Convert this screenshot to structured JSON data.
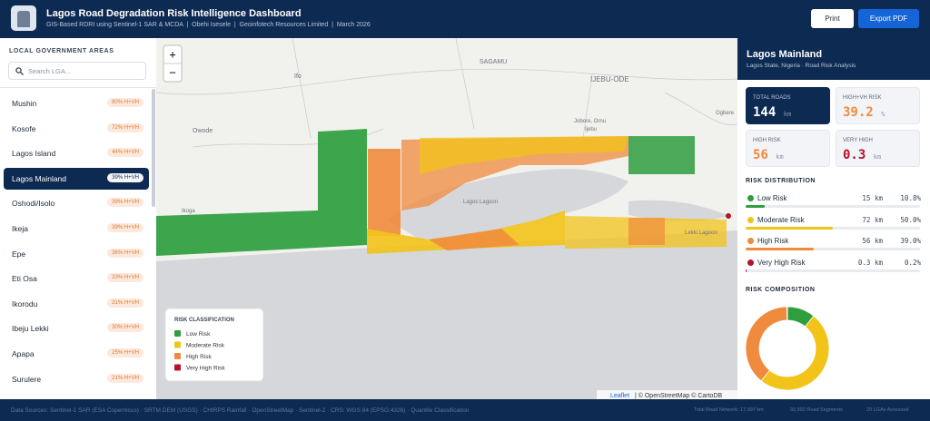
{
  "header": {
    "title": "Lagos Road Degradation Risk Intelligence Dashboard",
    "subtitle": "GIS-Based RDRI using Sentinel-1 SAR & MCDA  |  Obehi Isesele  |  Geoinfotech Resources Limited  |  March 2026",
    "buttons": [
      "Print",
      "Export PDF"
    ]
  },
  "sidebar": {
    "title": "LOCAL GOVERNMENT AREAS",
    "search_placeholder": "Search LGA...",
    "active_index": 3,
    "items": [
      {
        "name": "Mushin",
        "badge": "80% H+VH"
      },
      {
        "name": "Kosofe",
        "badge": "72% H+VH"
      },
      {
        "name": "Lagos Island",
        "badge": "44% H+VH"
      },
      {
        "name": "Lagos Mainland",
        "badge": "39% H+VH"
      },
      {
        "name": "Oshodi/Isolo",
        "badge": "39% H+VH"
      },
      {
        "name": "Ikeja",
        "badge": "39% H+VH"
      },
      {
        "name": "Epe",
        "badge": "36% H+VH"
      },
      {
        "name": "Eti Osa",
        "badge": "33% H+VH"
      },
      {
        "name": "Ikorodu",
        "badge": "31% H+VH"
      },
      {
        "name": "Ibeju Lekki",
        "badge": "30% H+VH"
      },
      {
        "name": "Apapa",
        "badge": "25% H+VH"
      },
      {
        "name": "Surulere",
        "badge": "21% H+VH"
      }
    ]
  },
  "map": {
    "zoom": [
      "+",
      "−"
    ],
    "place_labels": [
      "SAGAMU",
      "Ifo",
      "IJEBU-ODE",
      "Owode",
      "Ikoga",
      "Ogbere",
      "Jobore, Ornu",
      "Ijebu",
      "Lagos Lagoon",
      "Lekki Lagoon"
    ],
    "legend": {
      "title": "RISK CLASSIFICATION",
      "items": [
        {
          "label": "Low Risk",
          "color": "#2e9e3e"
        },
        {
          "label": "Moderate Risk",
          "color": "#f2c318"
        },
        {
          "label": "High Risk",
          "color": "#f08a3c"
        },
        {
          "label": "Very High Risk",
          "color": "#b5122b"
        }
      ]
    },
    "attribution": {
      "link": "Leaflet",
      "text": "| © OpenStreetMap © CartoDB"
    }
  },
  "panel": {
    "title": "Lagos Mainland",
    "subtitle": "Lagos State, Nigeria · Road Risk Analysis",
    "stats": [
      {
        "label": "TOTAL ROADS",
        "value": "144",
        "unit": "km",
        "color": "#ffffff"
      },
      {
        "label": "HIGH+VH RISK",
        "value": "39.2",
        "unit": "%",
        "color": "#f08a3c"
      },
      {
        "label": "HIGH RISK",
        "value": "56",
        "unit": "km",
        "color": "#f08a3c"
      },
      {
        "label": "VERY HIGH",
        "value": "0.3",
        "unit": "km",
        "color": "#b5122b"
      }
    ],
    "distribution": {
      "title": "RISK DISTRIBUTION",
      "rows": [
        {
          "label": "Low Risk",
          "color": "#2e9e3e",
          "km": "15 km",
          "share": {
            "value": 10.8,
            "label": "10.8%"
          }
        },
        {
          "label": "Moderate Risk",
          "color": "#f2c318",
          "km": "72 km",
          "share": {
            "value": 50.0,
            "label": "50.0%"
          }
        },
        {
          "label": "High Risk",
          "color": "#f08a3c",
          "km": "56 km",
          "share": {
            "value": 39.0,
            "label": "39.0%"
          }
        },
        {
          "label": "Very High Risk",
          "color": "#b5122b",
          "km": "0.3 km",
          "share": {
            "value": 0.2,
            "label": "0.2%"
          }
        }
      ]
    },
    "composition": {
      "title": "RISK COMPOSITION"
    }
  },
  "footer": {
    "sources": "Data Sources: Sentinel-1 SAR (ESA Copernicus) · SRTM DEM (USGS) · CHIRPS Rainfall · OpenStreetMap · Sentinel-2 · CRS: WGS 84 (EPSG:4326) · Quantile Classification",
    "stats": [
      "Total Road Network: 17,997 km",
      "92,992 Road Segments",
      "20 LGAs Assessed"
    ]
  }
}
